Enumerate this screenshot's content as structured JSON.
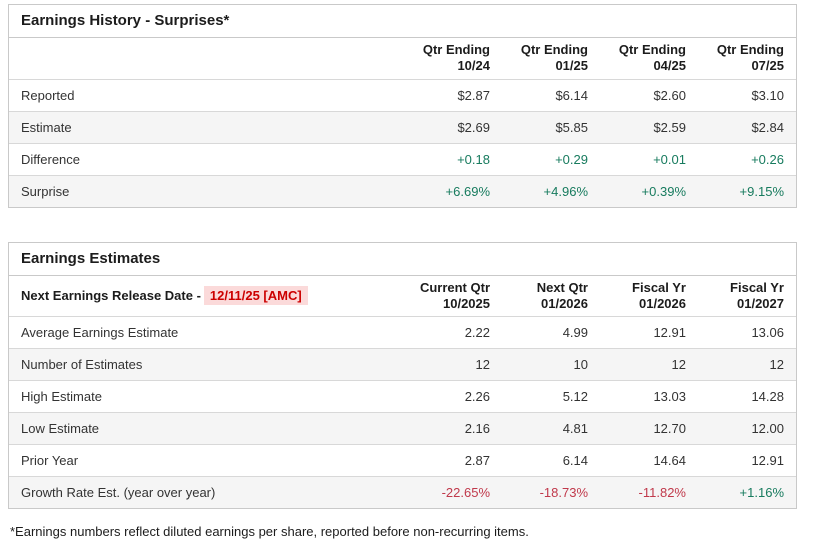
{
  "colors": {
    "green": "#177b5e",
    "red": "#c0394b",
    "release_red": "#cc0000",
    "release_bg": "#fbdada",
    "border": "#c9c9c9",
    "row_border": "#d8d8d8",
    "alt_row_bg": "#f5f5f5",
    "text": "#333333",
    "title_text": "#1c1c1c"
  },
  "history": {
    "title": "Earnings History - Surprises*",
    "columns": [
      {
        "line1": "Qtr Ending",
        "line2": "10/24"
      },
      {
        "line1": "Qtr Ending",
        "line2": "01/25"
      },
      {
        "line1": "Qtr Ending",
        "line2": "04/25"
      },
      {
        "line1": "Qtr Ending",
        "line2": "07/25"
      }
    ],
    "rows": [
      {
        "label": "Reported",
        "values": [
          "$2.87",
          "$6.14",
          "$2.60",
          "$3.10"
        ]
      },
      {
        "label": "Estimate",
        "values": [
          "$2.69",
          "$5.85",
          "$2.59",
          "$2.84"
        ]
      },
      {
        "label": "Difference",
        "values": [
          "+0.18",
          "+0.29",
          "+0.01",
          "+0.26"
        ]
      },
      {
        "label": "Surprise",
        "values": [
          "+6.69%",
          "+4.96%",
          "+0.39%",
          "+9.15%"
        ]
      }
    ]
  },
  "estimates": {
    "title": "Earnings Estimates",
    "release_label": "Next Earnings Release Date -",
    "release_date": "12/11/25 [AMC]",
    "columns": [
      {
        "line1": "Current Qtr",
        "line2": "10/2025"
      },
      {
        "line1": "Next Qtr",
        "line2": "01/2026"
      },
      {
        "line1": "Fiscal Yr",
        "line2": "01/2026"
      },
      {
        "line1": "Fiscal Yr",
        "line2": "01/2027"
      }
    ],
    "rows": [
      {
        "label": "Average Earnings Estimate",
        "values": [
          "2.22",
          "4.99",
          "12.91",
          "13.06"
        ]
      },
      {
        "label": "Number of Estimates",
        "values": [
          "12",
          "10",
          "12",
          "12"
        ]
      },
      {
        "label": "High Estimate",
        "values": [
          "2.26",
          "5.12",
          "13.03",
          "14.28"
        ]
      },
      {
        "label": "Low Estimate",
        "values": [
          "2.16",
          "4.81",
          "12.70",
          "12.00"
        ]
      },
      {
        "label": "Prior Year",
        "values": [
          "2.87",
          "6.14",
          "14.64",
          "12.91"
        ]
      },
      {
        "label": "Growth Rate Est. (year over year)",
        "values": [
          "-22.65%",
          "-18.73%",
          "-11.82%",
          "+1.16%"
        ]
      }
    ]
  },
  "footnote": "*Earnings numbers reflect diluted earnings per share, reported before non-recurring items."
}
